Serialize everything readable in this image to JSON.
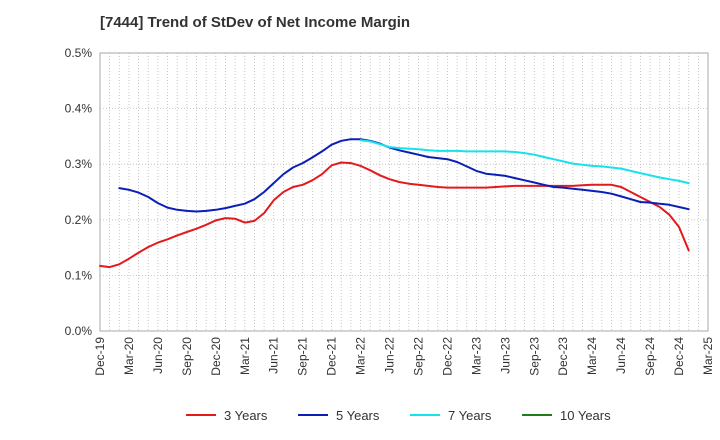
{
  "chart_data": {
    "type": "line",
    "title": "[7444]  Trend of StDev of Net Income Margin",
    "xlabel": "",
    "ylabel": "",
    "x_ticks": [
      "Dec-19",
      "Mar-20",
      "Jun-20",
      "Sep-20",
      "Dec-20",
      "Mar-21",
      "Jun-21",
      "Sep-21",
      "Dec-21",
      "Mar-22",
      "Jun-22",
      "Sep-22",
      "Dec-22",
      "Mar-23",
      "Jun-23",
      "Sep-23",
      "Dec-23",
      "Mar-24",
      "Jun-24",
      "Sep-24",
      "Dec-24",
      "Mar-25"
    ],
    "y_ticks": [
      "0.0%",
      "0.1%",
      "0.2%",
      "0.3%",
      "0.4%",
      "0.5%"
    ],
    "ylim": [
      0,
      0.5
    ],
    "y_unit": "%",
    "grid": true,
    "legend_position": "bottom",
    "series": [
      {
        "name": "3 Years",
        "color": "#e31a1c",
        "points": [
          [
            "Dec-19",
            0.117
          ],
          [
            "Jan-20",
            0.115
          ],
          [
            "Feb-20",
            0.12
          ],
          [
            "Mar-20",
            0.13
          ],
          [
            "Apr-20",
            0.141
          ],
          [
            "May-20",
            0.151
          ],
          [
            "Jun-20",
            0.159
          ],
          [
            "Jul-20",
            0.165
          ],
          [
            "Aug-20",
            0.172
          ],
          [
            "Sep-20",
            0.178
          ],
          [
            "Oct-20",
            0.184
          ],
          [
            "Nov-20",
            0.191
          ],
          [
            "Dec-20",
            0.199
          ],
          [
            "Jan-21",
            0.203
          ],
          [
            "Feb-21",
            0.202
          ],
          [
            "Mar-21",
            0.195
          ],
          [
            "Apr-21",
            0.198
          ],
          [
            "May-21",
            0.212
          ],
          [
            "Jun-21",
            0.235
          ],
          [
            "Jul-21",
            0.25
          ],
          [
            "Aug-21",
            0.259
          ],
          [
            "Sep-21",
            0.263
          ],
          [
            "Oct-21",
            0.271
          ],
          [
            "Nov-21",
            0.282
          ],
          [
            "Dec-21",
            0.298
          ],
          [
            "Jan-22",
            0.303
          ],
          [
            "Feb-22",
            0.302
          ],
          [
            "Mar-22",
            0.297
          ],
          [
            "Apr-22",
            0.289
          ],
          [
            "May-22",
            0.28
          ],
          [
            "Jun-22",
            0.273
          ],
          [
            "Jul-22",
            0.268
          ],
          [
            "Aug-22",
            0.265
          ],
          [
            "Sep-22",
            0.263
          ],
          [
            "Oct-22",
            0.261
          ],
          [
            "Nov-22",
            0.259
          ],
          [
            "Dec-22",
            0.258
          ],
          [
            "Jan-23",
            0.258
          ],
          [
            "Feb-23",
            0.258
          ],
          [
            "Mar-23",
            0.258
          ],
          [
            "Apr-23",
            0.258
          ],
          [
            "May-23",
            0.259
          ],
          [
            "Jun-23",
            0.26
          ],
          [
            "Jul-23",
            0.261
          ],
          [
            "Aug-23",
            0.261
          ],
          [
            "Sep-23",
            0.261
          ],
          [
            "Oct-23",
            0.261
          ],
          [
            "Nov-23",
            0.261
          ],
          [
            "Dec-23",
            0.261
          ],
          [
            "Jan-24",
            0.261
          ],
          [
            "Feb-24",
            0.262
          ],
          [
            "Mar-24",
            0.263
          ],
          [
            "Apr-24",
            0.263
          ],
          [
            "May-24",
            0.263
          ],
          [
            "Jun-24",
            0.259
          ],
          [
            "Jul-24",
            0.25
          ],
          [
            "Aug-24",
            0.241
          ],
          [
            "Sep-24",
            0.232
          ],
          [
            "Oct-24",
            0.223
          ],
          [
            "Nov-24",
            0.209
          ],
          [
            "Dec-24",
            0.187
          ],
          [
            "Jan-25",
            0.145
          ]
        ]
      },
      {
        "name": "5 Years",
        "color": "#0a1fb5",
        "points": [
          [
            "Feb-20",
            0.257
          ],
          [
            "Mar-20",
            0.254
          ],
          [
            "Apr-20",
            0.249
          ],
          [
            "May-20",
            0.241
          ],
          [
            "Jun-20",
            0.23
          ],
          [
            "Jul-20",
            0.222
          ],
          [
            "Aug-20",
            0.218
          ],
          [
            "Sep-20",
            0.216
          ],
          [
            "Oct-20",
            0.215
          ],
          [
            "Nov-20",
            0.216
          ],
          [
            "Dec-20",
            0.218
          ],
          [
            "Jan-21",
            0.221
          ],
          [
            "Feb-21",
            0.225
          ],
          [
            "Mar-21",
            0.229
          ],
          [
            "Apr-21",
            0.237
          ],
          [
            "May-21",
            0.25
          ],
          [
            "Jun-21",
            0.266
          ],
          [
            "Jul-21",
            0.282
          ],
          [
            "Aug-21",
            0.294
          ],
          [
            "Sep-21",
            0.302
          ],
          [
            "Oct-21",
            0.312
          ],
          [
            "Nov-21",
            0.323
          ],
          [
            "Dec-21",
            0.335
          ],
          [
            "Jan-22",
            0.342
          ],
          [
            "Feb-22",
            0.345
          ],
          [
            "Mar-22",
            0.345
          ],
          [
            "Apr-22",
            0.342
          ],
          [
            "May-22",
            0.337
          ],
          [
            "Jun-22",
            0.33
          ],
          [
            "Jul-22",
            0.325
          ],
          [
            "Aug-22",
            0.321
          ],
          [
            "Sep-22",
            0.317
          ],
          [
            "Oct-22",
            0.313
          ],
          [
            "Nov-22",
            0.311
          ],
          [
            "Dec-22",
            0.309
          ],
          [
            "Jan-23",
            0.304
          ],
          [
            "Feb-23",
            0.296
          ],
          [
            "Mar-23",
            0.288
          ],
          [
            "Apr-23",
            0.283
          ],
          [
            "May-23",
            0.281
          ],
          [
            "Jun-23",
            0.279
          ],
          [
            "Jul-23",
            0.275
          ],
          [
            "Aug-23",
            0.271
          ],
          [
            "Sep-23",
            0.267
          ],
          [
            "Oct-23",
            0.263
          ],
          [
            "Nov-23",
            0.259
          ],
          [
            "Dec-23",
            0.258
          ],
          [
            "Jan-24",
            0.256
          ],
          [
            "Feb-24",
            0.254
          ],
          [
            "Mar-24",
            0.252
          ],
          [
            "Apr-24",
            0.25
          ],
          [
            "May-24",
            0.247
          ],
          [
            "Jun-24",
            0.242
          ],
          [
            "Jul-24",
            0.237
          ],
          [
            "Aug-24",
            0.232
          ],
          [
            "Sep-24",
            0.231
          ],
          [
            "Oct-24",
            0.229
          ],
          [
            "Nov-24",
            0.227
          ],
          [
            "Dec-24",
            0.223
          ],
          [
            "Jan-25",
            0.219
          ]
        ]
      },
      {
        "name": "7 Years",
        "color": "#17e2ea",
        "points": [
          [
            "Mar-22",
            0.343
          ],
          [
            "Apr-22",
            0.341
          ],
          [
            "May-22",
            0.336
          ],
          [
            "Jun-22",
            0.331
          ],
          [
            "Jul-22",
            0.329
          ],
          [
            "Aug-22",
            0.328
          ],
          [
            "Sep-22",
            0.327
          ],
          [
            "Oct-22",
            0.325
          ],
          [
            "Nov-22",
            0.324
          ],
          [
            "Dec-22",
            0.324
          ],
          [
            "Jan-23",
            0.324
          ],
          [
            "Feb-23",
            0.323
          ],
          [
            "Mar-23",
            0.323
          ],
          [
            "Apr-23",
            0.323
          ],
          [
            "May-23",
            0.323
          ],
          [
            "Jun-23",
            0.323
          ],
          [
            "Jul-23",
            0.322
          ],
          [
            "Aug-23",
            0.32
          ],
          [
            "Sep-23",
            0.317
          ],
          [
            "Oct-23",
            0.313
          ],
          [
            "Nov-23",
            0.309
          ],
          [
            "Dec-23",
            0.305
          ],
          [
            "Jan-24",
            0.301
          ],
          [
            "Feb-24",
            0.299
          ],
          [
            "Mar-24",
            0.297
          ],
          [
            "Apr-24",
            0.296
          ],
          [
            "May-24",
            0.294
          ],
          [
            "Jun-24",
            0.292
          ],
          [
            "Jul-24",
            0.288
          ],
          [
            "Aug-24",
            0.284
          ],
          [
            "Sep-24",
            0.28
          ],
          [
            "Oct-24",
            0.276
          ],
          [
            "Nov-24",
            0.273
          ],
          [
            "Dec-24",
            0.27
          ],
          [
            "Jan-25",
            0.266
          ]
        ]
      },
      {
        "name": "10 Years",
        "color": "#1e7b1e",
        "points": []
      }
    ]
  }
}
